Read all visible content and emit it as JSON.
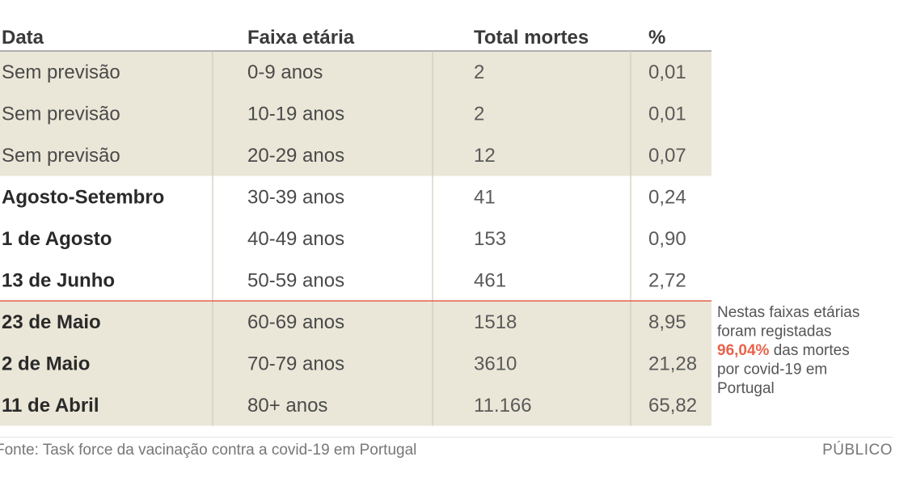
{
  "chart_data": {
    "type": "table",
    "columns": [
      "Data",
      "Faixa etária",
      "Total mortes",
      "%"
    ],
    "rows": [
      {
        "data": "Sem previsão",
        "faixa": "0-9 anos",
        "total": "2",
        "pct": "0,01",
        "group": "a"
      },
      {
        "data": "Sem previsão",
        "faixa": "10-19 anos",
        "total": "2",
        "pct": "0,01",
        "group": "a"
      },
      {
        "data": "Sem previsão",
        "faixa": "20-29 anos",
        "total": "12",
        "pct": "0,07",
        "group": "a"
      },
      {
        "data": "Agosto-Setembro",
        "faixa": "30-39 anos",
        "total": "41",
        "pct": "0,24",
        "group": "b"
      },
      {
        "data": "1 de Agosto",
        "faixa": "40-49 anos",
        "total": "153",
        "pct": "0,90",
        "group": "b"
      },
      {
        "data": "13 de Junho",
        "faixa": "50-59 anos",
        "total": "461",
        "pct": "2,72",
        "group": "b"
      },
      {
        "data": "23 de Maio",
        "faixa": "60-69 anos",
        "total": "1518",
        "pct": "8,95",
        "group": "c"
      },
      {
        "data": "2 de Maio",
        "faixa": "70-79 anos",
        "total": "3610",
        "pct": "21,28",
        "group": "c"
      },
      {
        "data": "11 de Abril",
        "faixa": "80+ anos",
        "total": "11.166",
        "pct": "65,82",
        "group": "c"
      }
    ],
    "annotation": {
      "lines": [
        "Nestas faixas etárias",
        "foram registadas"
      ],
      "highlight": "96,04%",
      "after_highlight": " das mortes",
      "lines_after": [
        "por covid-19 em",
        "Portugal"
      ]
    },
    "source": "Fonte: Task force da vacinação contra a covid-19 em Portugal",
    "brand": "PÚBLICO"
  },
  "colors": {
    "shaded": "#ebe7d8",
    "divider": "#cfcbbb",
    "accent": "#e8624b",
    "header_line": "#9a9a9a"
  }
}
